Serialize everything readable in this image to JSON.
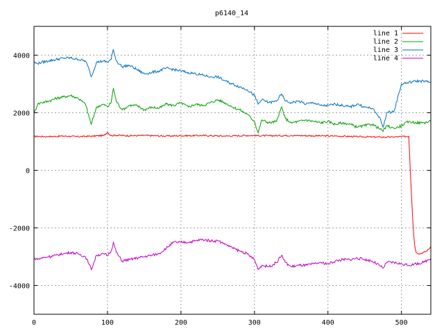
{
  "chart_data": {
    "type": "line",
    "title": "p6140_14",
    "xlabel": "",
    "ylabel": "",
    "xlim": [
      0,
      540
    ],
    "ylim": [
      -5000,
      5000
    ],
    "xticks": [
      0,
      100,
      200,
      300,
      400,
      500
    ],
    "yticks": [
      -4000,
      -2000,
      0,
      2000,
      4000
    ],
    "grid": true,
    "legend_position": "top-right",
    "series": [
      {
        "name": "line 1",
        "color": "#ff0000",
        "x": [
          0,
          20,
          40,
          60,
          80,
          95,
          100,
          105,
          110,
          130,
          150,
          180,
          200,
          230,
          260,
          290,
          320,
          350,
          380,
          410,
          440,
          460,
          480,
          500,
          510,
          513,
          516,
          518,
          520,
          525,
          530,
          535,
          540
        ],
        "y": [
          1180,
          1170,
          1190,
          1170,
          1190,
          1210,
          1320,
          1200,
          1220,
          1200,
          1210,
          1190,
          1200,
          1210,
          1190,
          1210,
          1200,
          1210,
          1200,
          1190,
          1170,
          1160,
          1150,
          1170,
          1180,
          -500,
          -2000,
          -2600,
          -2850,
          -2900,
          -2850,
          -2800,
          -2650
        ]
      },
      {
        "name": "line 2",
        "color": "#00a000",
        "x": [
          0,
          5,
          10,
          20,
          30,
          40,
          50,
          60,
          70,
          75,
          78,
          85,
          95,
          100,
          105,
          108,
          112,
          120,
          130,
          140,
          150,
          160,
          170,
          180,
          190,
          200,
          210,
          220,
          230,
          240,
          250,
          260,
          270,
          280,
          290,
          300,
          305,
          310,
          320,
          330,
          337,
          342,
          350,
          360,
          370,
          380,
          390,
          400,
          410,
          420,
          430,
          440,
          450,
          460,
          470,
          475,
          480,
          490,
          500,
          510,
          520,
          530,
          540
        ],
        "y": [
          1950,
          2300,
          2350,
          2400,
          2500,
          2550,
          2600,
          2500,
          2300,
          1850,
          1600,
          2200,
          2300,
          2200,
          2350,
          2850,
          2400,
          2100,
          2250,
          2250,
          2100,
          2200,
          2150,
          2300,
          2250,
          2350,
          2200,
          2300,
          2250,
          2350,
          2450,
          2350,
          2200,
          2100,
          1950,
          1700,
          1300,
          1750,
          1650,
          1700,
          2200,
          1800,
          1650,
          1700,
          1750,
          1700,
          1650,
          1700,
          1600,
          1650,
          1600,
          1500,
          1550,
          1600,
          1450,
          1350,
          1550,
          1450,
          1550,
          1700,
          1650,
          1650,
          1700
        ]
      },
      {
        "name": "line 3",
        "color": "#0070c0",
        "x": [
          0,
          5,
          10,
          20,
          30,
          40,
          50,
          60,
          70,
          75,
          78,
          85,
          95,
          100,
          105,
          108,
          112,
          120,
          130,
          140,
          150,
          160,
          170,
          180,
          190,
          200,
          210,
          220,
          230,
          240,
          250,
          260,
          270,
          280,
          290,
          300,
          305,
          310,
          320,
          330,
          337,
          342,
          350,
          360,
          370,
          380,
          390,
          400,
          410,
          420,
          430,
          440,
          450,
          460,
          470,
          475,
          480,
          490,
          500,
          510,
          520,
          530,
          540
        ],
        "y": [
          3750,
          3700,
          3750,
          3800,
          3850,
          3900,
          3900,
          3850,
          3800,
          3500,
          3250,
          3750,
          3800,
          3750,
          3850,
          4200,
          3800,
          3600,
          3650,
          3500,
          3350,
          3400,
          3450,
          3550,
          3500,
          3450,
          3400,
          3350,
          3300,
          3250,
          3250,
          3100,
          3000,
          2900,
          2800,
          2600,
          2300,
          2450,
          2350,
          2400,
          2650,
          2400,
          2350,
          2400,
          2300,
          2350,
          2250,
          2250,
          2300,
          2250,
          2200,
          2300,
          2200,
          2150,
          1850,
          1500,
          2000,
          2050,
          3000,
          3050,
          3100,
          3100,
          3050
        ]
      },
      {
        "name": "line 4",
        "color": "#c000c0",
        "x": [
          0,
          5,
          10,
          20,
          30,
          40,
          50,
          60,
          70,
          75,
          78,
          85,
          95,
          100,
          105,
          108,
          112,
          120,
          130,
          140,
          150,
          160,
          170,
          180,
          190,
          200,
          210,
          220,
          230,
          240,
          250,
          260,
          270,
          280,
          290,
          300,
          305,
          310,
          320,
          330,
          337,
          342,
          350,
          360,
          370,
          380,
          390,
          400,
          410,
          420,
          430,
          440,
          450,
          460,
          470,
          475,
          480,
          490,
          500,
          510,
          520,
          530,
          540
        ],
        "y": [
          -3050,
          -3100,
          -3050,
          -3000,
          -2950,
          -2900,
          -2850,
          -2900,
          -3000,
          -3250,
          -3450,
          -2950,
          -2900,
          -2950,
          -2800,
          -2500,
          -2850,
          -3150,
          -3100,
          -3050,
          -3000,
          -2950,
          -2900,
          -2700,
          -2500,
          -2500,
          -2500,
          -2450,
          -2400,
          -2450,
          -2450,
          -2550,
          -2700,
          -2800,
          -2900,
          -3100,
          -3450,
          -3300,
          -3350,
          -3200,
          -2950,
          -3200,
          -3350,
          -3300,
          -3300,
          -3250,
          -3200,
          -3250,
          -3150,
          -3100,
          -3100,
          -3050,
          -3100,
          -3150,
          -3300,
          -3400,
          -3200,
          -3200,
          -3250,
          -3300,
          -3250,
          -3200,
          -3050
        ]
      }
    ]
  }
}
